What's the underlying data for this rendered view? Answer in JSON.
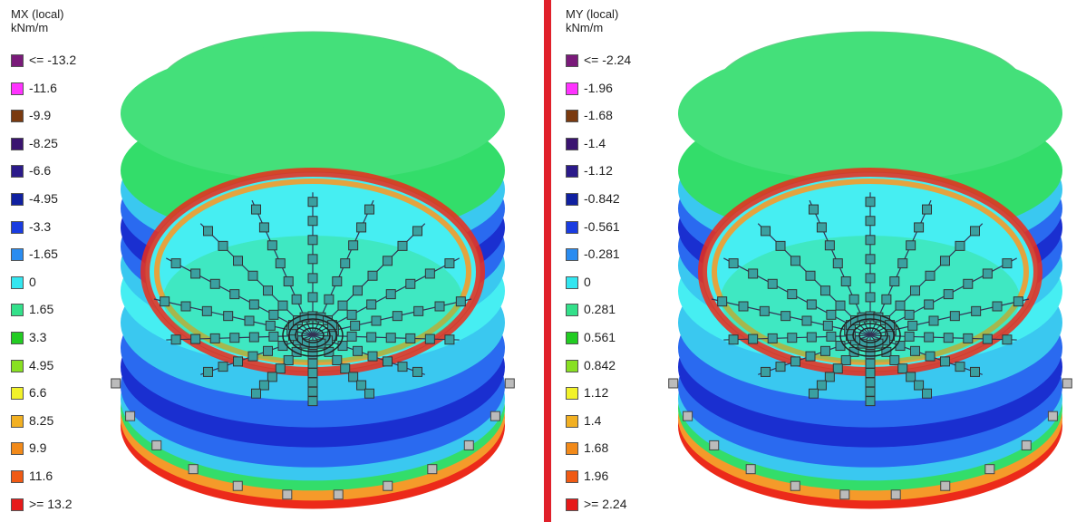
{
  "left": {
    "legend": {
      "title_line1": "MX (local)",
      "title_line2": "kNm/m",
      "items": [
        {
          "label": "<= -13.2",
          "color": "#7a1a7a"
        },
        {
          "label": "-11.6",
          "color": "#ff33ff"
        },
        {
          "label": "-9.9",
          "color": "#7a3a10"
        },
        {
          "label": "-8.25",
          "color": "#3a1470"
        },
        {
          "label": "-6.6",
          "color": "#2b1a8a"
        },
        {
          "label": "-4.95",
          "color": "#1020a0"
        },
        {
          "label": "-3.3",
          "color": "#1a3ce0"
        },
        {
          "label": "-1.65",
          "color": "#2a8cf0"
        },
        {
          "label": "0",
          "color": "#33e6f0"
        },
        {
          "label": "1.65",
          "color": "#33e08a"
        },
        {
          "label": "3.3",
          "color": "#22cc22"
        },
        {
          "label": "4.95",
          "color": "#88e022"
        },
        {
          "label": "6.6",
          "color": "#f2f22a"
        },
        {
          "label": "8.25",
          "color": "#f2b022"
        },
        {
          "label": "9.9",
          "color": "#f28a1a"
        },
        {
          "label": "11.6",
          "color": "#f05a14"
        },
        {
          "label": ">= 13.2",
          "color": "#e61a1a"
        }
      ]
    }
  },
  "right": {
    "legend": {
      "title_line1": "MY (local)",
      "title_line2": "kNm/m",
      "items": [
        {
          "label": "<= -2.24",
          "color": "#7a1a7a"
        },
        {
          "label": "-1.96",
          "color": "#ff33ff"
        },
        {
          "label": "-1.68",
          "color": "#7a3a10"
        },
        {
          "label": "-1.4",
          "color": "#3a1470"
        },
        {
          "label": "-1.12",
          "color": "#2b1a8a"
        },
        {
          "label": "-0.842",
          "color": "#1020a0"
        },
        {
          "label": "-0.561",
          "color": "#1a3ce0"
        },
        {
          "label": "-0.281",
          "color": "#2a8cf0"
        },
        {
          "label": "0",
          "color": "#33e6f0"
        },
        {
          "label": "0.281",
          "color": "#33e08a"
        },
        {
          "label": "0.561",
          "color": "#22cc22"
        },
        {
          "label": "0.842",
          "color": "#88e022"
        },
        {
          "label": "1.12",
          "color": "#f2f22a"
        },
        {
          "label": "1.4",
          "color": "#f2b022"
        },
        {
          "label": "1.68",
          "color": "#f28a1a"
        },
        {
          "label": "1.96",
          "color": "#f05a14"
        },
        {
          "label": ">= 2.24",
          "color": "#e61a1a"
        }
      ]
    }
  },
  "colors": {
    "wall_top": "#44e07a",
    "deep_blue": "#1a2fd0",
    "mid_blue": "#2a6af0",
    "light_blue": "#3ac8f0",
    "cyan": "#46eef2",
    "green": "#33dd6a",
    "orange": "#f59a2a",
    "red": "#ec2a1a",
    "support_fill": "#3aa0a0",
    "support_stroke": "#333333",
    "divider": "#e0202a"
  }
}
